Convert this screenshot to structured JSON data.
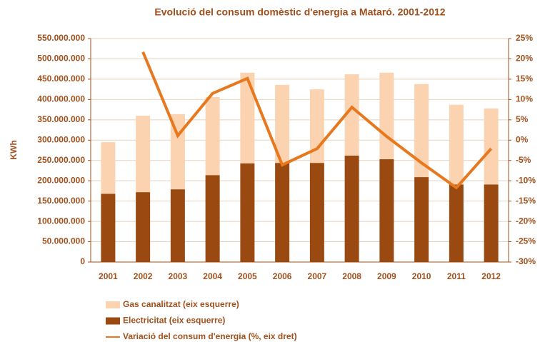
{
  "chart_data": {
    "type": "bar",
    "stacked": true,
    "title": "Evolució del consum domèstic d'energia a Mataró. 2001-2012",
    "y_label": "KWh",
    "categories": [
      "2001",
      "2002",
      "2003",
      "2004",
      "2005",
      "2006",
      "2007",
      "2008",
      "2009",
      "2010",
      "2011",
      "2012"
    ],
    "series": [
      {
        "name": "Electricitat (eix esquerre)",
        "type": "bar",
        "color": "#9a4a10",
        "values": [
          168000000,
          172000000,
          179000000,
          214000000,
          243000000,
          244000000,
          244000000,
          262000000,
          253000000,
          209000000,
          191000000,
          191000000
        ]
      },
      {
        "name": "Gas canalitzat (eix esquerre)",
        "type": "bar",
        "color": "#fbd3b0",
        "values": [
          127000000,
          188000000,
          185000000,
          192000000,
          223000000,
          192000000,
          181000000,
          200000000,
          213000000,
          229000000,
          196000000,
          187000000
        ]
      },
      {
        "name": "Variació del consum d'energia (%, eix dret)",
        "type": "line",
        "axis": "y2",
        "color": "#e8781e",
        "values": [
          null,
          21.7,
          1.1,
          11.5,
          15.2,
          -6.1,
          -2.1,
          8.1,
          0.9,
          -5.6,
          -11.7,
          -2.1
        ]
      }
    ],
    "legend_order": [
      1,
      0,
      2
    ],
    "ylim": [
      0,
      550000000
    ],
    "yticks": [
      0,
      {
        "value": 50000000,
        "label": "50.000.000"
      },
      {
        "value": 100000000,
        "label": "100.000.000"
      },
      {
        "value": 150000000,
        "label": "150.000.000"
      },
      {
        "value": 200000000,
        "label": "200.000.000"
      },
      {
        "value": 250000000,
        "label": "250.000.000"
      },
      {
        "value": 300000000,
        "label": "300.000.000"
      },
      {
        "value": 350000000,
        "label": "350.000.000"
      },
      {
        "value": 400000000,
        "label": "400.000.000"
      },
      {
        "value": 450000000,
        "label": "450.000.000"
      },
      {
        "value": 500000000,
        "label": "500.000.000"
      },
      {
        "value": 550000000,
        "label": "550.000.000"
      }
    ],
    "y2lim": [
      -30,
      25
    ],
    "y2ticks": [
      {
        "value": -30,
        "label": "-30%"
      },
      {
        "value": -25,
        "label": "-25%"
      },
      {
        "value": -20,
        "label": "-20%"
      },
      {
        "value": -15,
        "label": "-15%"
      },
      {
        "value": -10,
        "label": "-10%"
      },
      {
        "value": -5,
        "label": "-5%"
      },
      {
        "value": 0,
        "label": "0%"
      },
      {
        "value": 5,
        "label": "5%"
      },
      {
        "value": 10,
        "label": "10%"
      },
      {
        "value": 15,
        "label": "15%"
      },
      {
        "value": 20,
        "label": "20%"
      },
      {
        "value": 25,
        "label": "25%"
      }
    ],
    "grid": true
  }
}
